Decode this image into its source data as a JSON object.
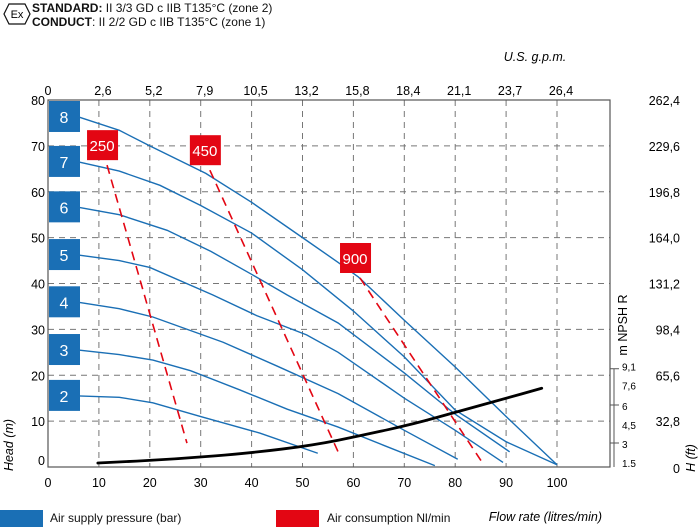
{
  "header": {
    "icon": "ex-atex-hexagon-icon",
    "icon_text": "Ex",
    "line1_label": "STANDARD:",
    "line1_text": " II 3/3 GD c IIB T135°C (zone 2)",
    "line2_label": "CONDUCT",
    "line2_text": ": II 2/2 GD c IIB T135°C (zone 1)"
  },
  "legend": {
    "position": "bottom",
    "items": [
      {
        "label": "Air supply pressure (bar)",
        "color": "#1a6fb5"
      },
      {
        "label": "Air consumption Nl/min",
        "color": "#e30613"
      }
    ]
  },
  "chart_data": {
    "type": "line",
    "xlabel": "Flow rate (litres/min)",
    "ylabel": "Head (m)",
    "x2label": "U.S. g.p.m.",
    "y2label": "H (ft)",
    "y3label": "m NPSH R",
    "xlim": [
      0,
      110
    ],
    "ylim": [
      0,
      80
    ],
    "grid": true,
    "x_ticks": [
      0,
      10,
      20,
      30,
      40,
      50,
      60,
      70,
      80,
      90,
      100
    ],
    "y_ticks": [
      0,
      10,
      20,
      30,
      40,
      50,
      60,
      70,
      80
    ],
    "x2_ticks": [
      "0",
      "2,6",
      "5,2",
      "7,9",
      "10,5",
      "13,2",
      "15,8",
      "18,4",
      "21,1",
      "23,7",
      "26,4"
    ],
    "y2_ticks": [
      "0",
      "32,8",
      "65,6",
      "98,4",
      "131,2",
      "164,0",
      "196,8",
      "229,6",
      "262,4"
    ],
    "npsh_ticks": [
      "1.5",
      "3",
      "4,5",
      "6",
      "7,6",
      "9,1"
    ],
    "npsh_tick_values": [
      1.5,
      3,
      4.5,
      6,
      7.6,
      9.1
    ],
    "colors": {
      "pressure": "#1a6fb5",
      "air": "#e30613",
      "npsh": "#000000"
    },
    "pressure_series": [
      {
        "name": "8",
        "points": [
          [
            6,
            76.3
          ],
          [
            14,
            73.4
          ],
          [
            20,
            70
          ],
          [
            31,
            64
          ],
          [
            40,
            57.7
          ],
          [
            50,
            50
          ],
          [
            57,
            44.6
          ],
          [
            61,
            41.4
          ],
          [
            70,
            32
          ],
          [
            80,
            21.8
          ],
          [
            90,
            11
          ],
          [
            100,
            0.5
          ]
        ]
      },
      {
        "name": "7",
        "points": [
          [
            6,
            66.5
          ],
          [
            14,
            64.5
          ],
          [
            22,
            61.4
          ],
          [
            30,
            57
          ],
          [
            40,
            51
          ],
          [
            50,
            43
          ],
          [
            60,
            34
          ],
          [
            70,
            24
          ],
          [
            80,
            12.4
          ],
          [
            90,
            5.5
          ],
          [
            100,
            0.5
          ]
        ]
      },
      {
        "name": "6",
        "points": [
          [
            6,
            56.6
          ],
          [
            14,
            55
          ],
          [
            23.4,
            51.6
          ],
          [
            32,
            47
          ],
          [
            40,
            42
          ],
          [
            47,
            37.5
          ],
          [
            57,
            31.4
          ],
          [
            70,
            20.5
          ],
          [
            80,
            11.5
          ],
          [
            90.7,
            3.3
          ]
        ]
      },
      {
        "name": "5",
        "points": [
          [
            6,
            46.2
          ],
          [
            14,
            45
          ],
          [
            20,
            43.5
          ],
          [
            32.4,
            37.5
          ],
          [
            41,
            33
          ],
          [
            50.8,
            28.8
          ],
          [
            57,
            25
          ],
          [
            70,
            15
          ],
          [
            80,
            8
          ],
          [
            89.4,
            1
          ]
        ]
      },
      {
        "name": "4",
        "points": [
          [
            6,
            35.9
          ],
          [
            14,
            34.5
          ],
          [
            20.6,
            32.7
          ],
          [
            34.4,
            27.2
          ],
          [
            45,
            22
          ],
          [
            57,
            16
          ],
          [
            70,
            8
          ],
          [
            80.5,
            1.7
          ]
        ]
      },
      {
        "name": "3",
        "points": [
          [
            6,
            25.5
          ],
          [
            14,
            24.5
          ],
          [
            20.6,
            23.3
          ],
          [
            28,
            21
          ],
          [
            37.7,
            16.8
          ],
          [
            47,
            12.6
          ],
          [
            57,
            8.7
          ],
          [
            66,
            4.7
          ],
          [
            76,
            0.3
          ]
        ]
      },
      {
        "name": "2",
        "points": [
          [
            6,
            15.5
          ],
          [
            14,
            15.2
          ],
          [
            20.6,
            14
          ],
          [
            30,
            11
          ],
          [
            41.6,
            7.4
          ],
          [
            53,
            3
          ]
        ]
      }
    ],
    "air_series": [
      {
        "name": "250",
        "points": [
          [
            11.6,
            65.8
          ],
          [
            27.3,
            5.2
          ]
        ]
      },
      {
        "name": "450",
        "points": [
          [
            31.8,
            64.7
          ],
          [
            57,
            3.3
          ]
        ]
      },
      {
        "name": "900",
        "points": [
          [
            61.3,
            41.2
          ],
          [
            85.3,
            1
          ]
        ]
      }
    ],
    "npsh_series": {
      "points": [
        [
          9.8,
          1.5
        ],
        [
          25,
          1.8
        ],
        [
          40,
          2.3
        ],
        [
          52,
          2.9
        ],
        [
          62,
          3.7
        ],
        [
          72,
          4.6
        ],
        [
          80,
          5.5
        ],
        [
          89,
          6.5
        ],
        [
          97,
          7.4
        ]
      ]
    }
  }
}
